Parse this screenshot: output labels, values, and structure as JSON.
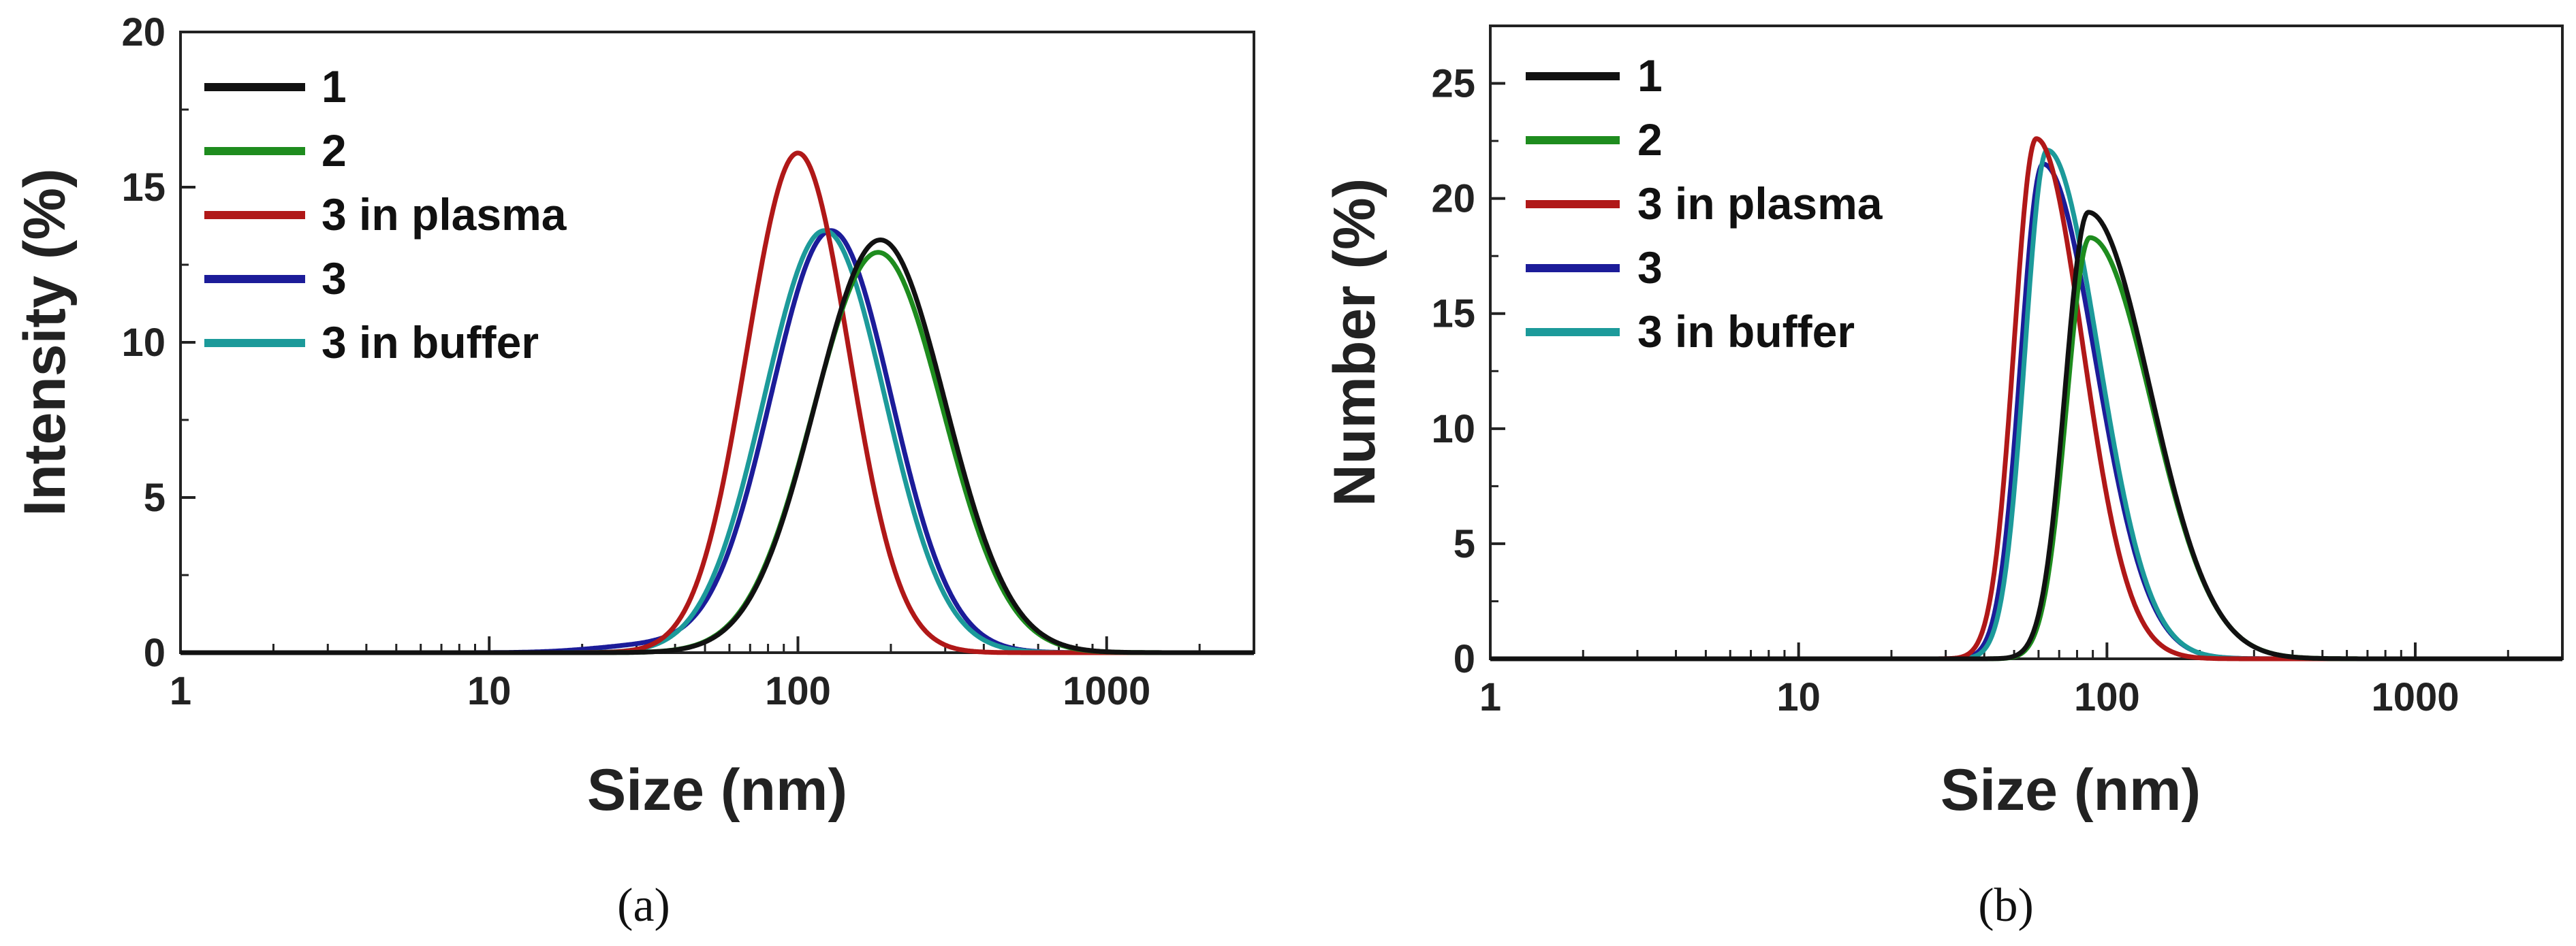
{
  "chart_data": [
    {
      "type": "line",
      "panel_label": "(a)",
      "xlabel": "Size (nm)",
      "ylabel": "Intensity (%)",
      "xscale": "log",
      "xlim": [
        1,
        3000
      ],
      "ylim": [
        0,
        20
      ],
      "xticks": [
        1,
        10,
        100,
        1000
      ],
      "xtick_labels": [
        "1",
        "10",
        "100",
        "1000"
      ],
      "yticks": [
        0,
        5,
        10,
        15,
        20
      ],
      "ytick_labels": [
        "0",
        "5",
        "10",
        "15",
        "20"
      ],
      "legend_position": "top-left",
      "series": [
        {
          "name": "1",
          "color": "#111111",
          "peak_x": 185,
          "peak_y": 13.3,
          "width_decades": 0.21,
          "shoulder": null
        },
        {
          "name": "2",
          "color": "#1e8c1e",
          "peak_x": 182,
          "peak_y": 12.9,
          "width_decades": 0.21,
          "shoulder": null
        },
        {
          "name": "3 in plasma",
          "color": "#b01818",
          "peak_x": 100,
          "peak_y": 16.1,
          "width_decades": 0.165,
          "shoulder": null
        },
        {
          "name": "3",
          "color": "#1c1c99",
          "peak_x": 128,
          "peak_y": 13.6,
          "width_decades": 0.195,
          "shoulder": {
            "x": 32,
            "y": 0.22,
            "width_decades": 0.17
          }
        },
        {
          "name": "3 in buffer",
          "color": "#1c9a9a",
          "peak_x": 122,
          "peak_y": 13.6,
          "width_decades": 0.195,
          "shoulder": null
        }
      ]
    },
    {
      "type": "line",
      "panel_label": "(b)",
      "xlabel": "Size (nm)",
      "ylabel": "Number (%)",
      "xscale": "log",
      "xlim": [
        1,
        3000
      ],
      "ylim": [
        0,
        27.5
      ],
      "xticks": [
        1,
        10,
        100,
        1000
      ],
      "xtick_labels": [
        "1",
        "10",
        "100",
        "1000"
      ],
      "yticks": [
        0,
        5,
        10,
        15,
        20,
        25
      ],
      "ytick_labels": [
        "0",
        "5",
        "10",
        "15",
        "20",
        "25"
      ],
      "legend_position": "top-left",
      "series": [
        {
          "name": "1",
          "color": "#111111",
          "peak_x": 87,
          "peak_y": 19.4,
          "left_width_decades": 0.075,
          "right_width_decades": 0.2
        },
        {
          "name": "2",
          "color": "#1e8c1e",
          "peak_x": 88,
          "peak_y": 18.3,
          "left_width_decades": 0.075,
          "right_width_decades": 0.2
        },
        {
          "name": "3 in plasma",
          "color": "#b01818",
          "peak_x": 59,
          "peak_y": 22.6,
          "left_width_decades": 0.072,
          "right_width_decades": 0.15
        },
        {
          "name": "3",
          "color": "#1c1c99",
          "peak_x": 62,
          "peak_y": 21.5,
          "left_width_decades": 0.072,
          "right_width_decades": 0.17
        },
        {
          "name": "3 in buffer",
          "color": "#1c9a9a",
          "peak_x": 64,
          "peak_y": 22.1,
          "left_width_decades": 0.072,
          "right_width_decades": 0.165
        }
      ]
    }
  ]
}
